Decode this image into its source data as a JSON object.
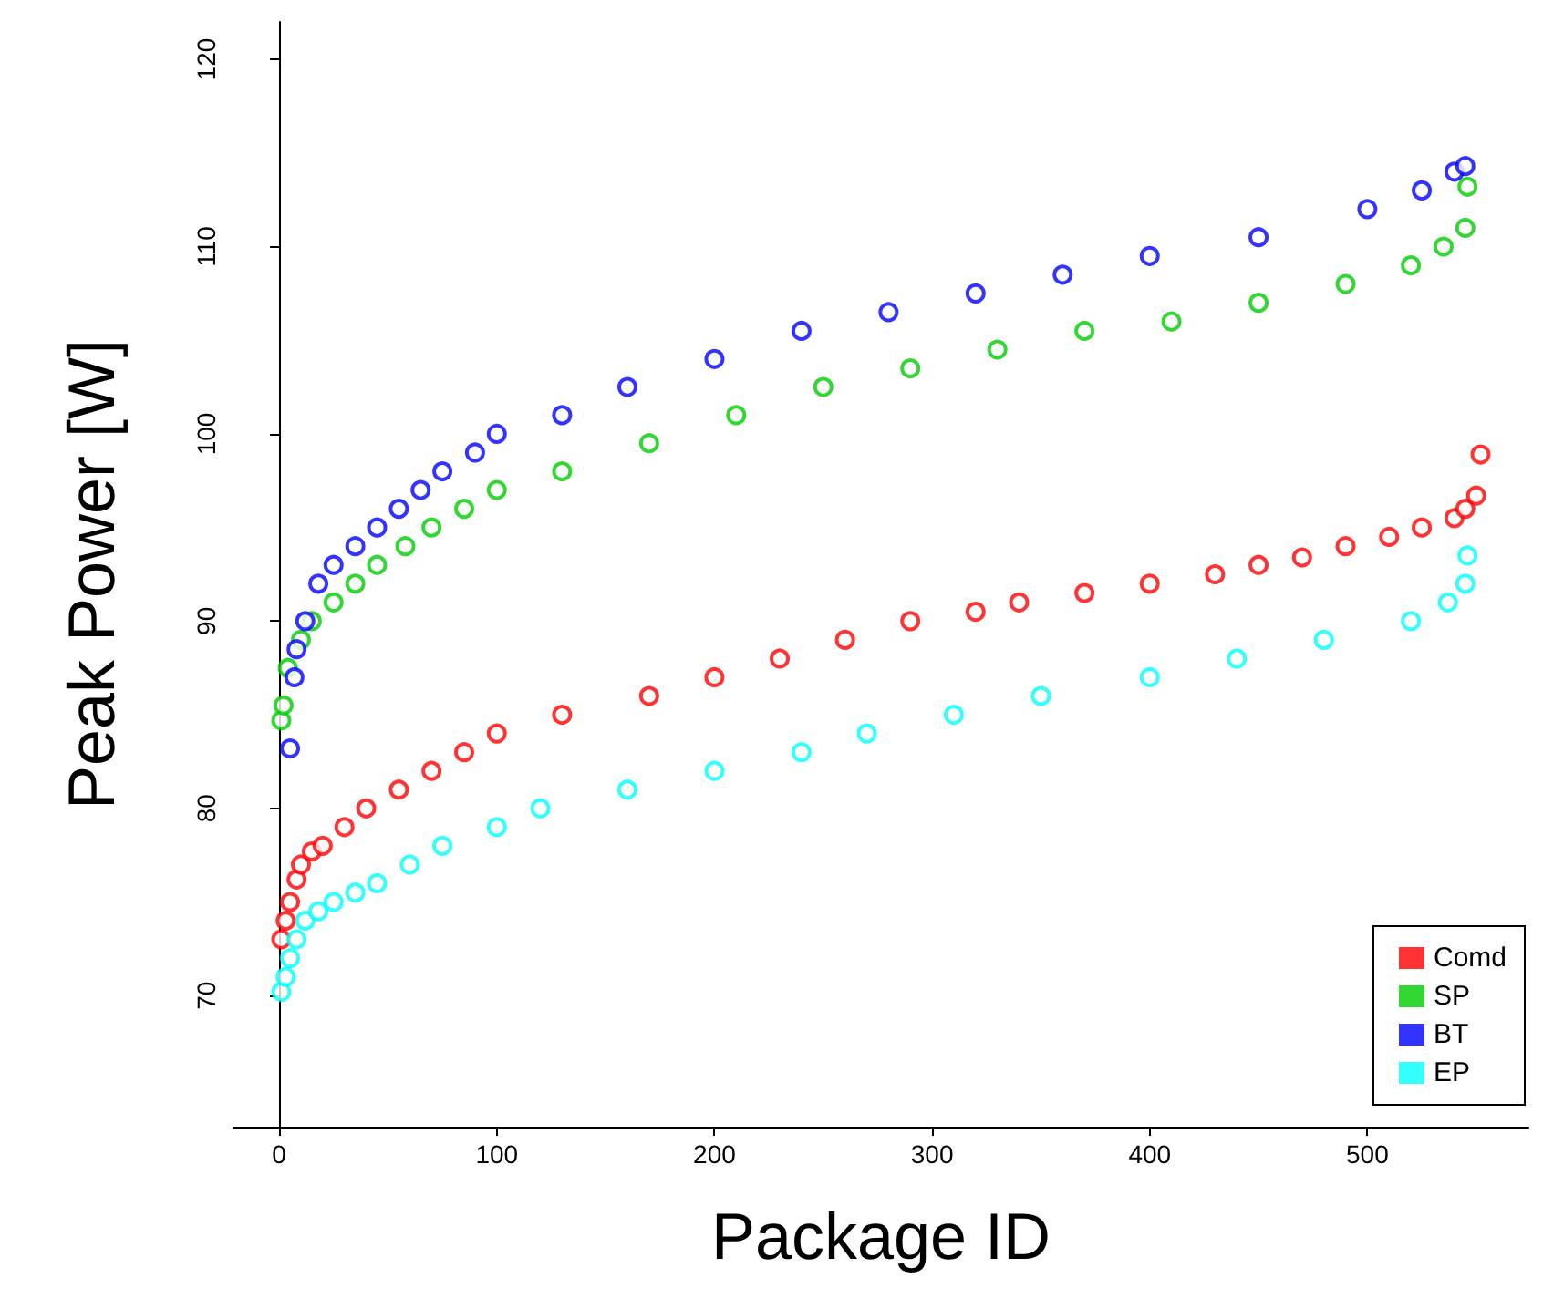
{
  "chart_data": {
    "type": "scatter",
    "xlabel": "Package ID",
    "ylabel": "Peak Power [W]",
    "xlim": [
      -21,
      574
    ],
    "ylim": [
      63,
      122
    ],
    "xticks": [
      0,
      100,
      200,
      300,
      400,
      500
    ],
    "yticks": [
      70,
      80,
      90,
      100,
      110,
      120
    ],
    "grid": false,
    "legend": "bottom right",
    "marker": "circle",
    "series": [
      {
        "name": "Comd",
        "color": "#ff0000",
        "x": [
          1,
          3,
          5,
          8,
          10,
          15,
          20,
          30,
          40,
          55,
          70,
          85,
          100,
          130,
          170,
          200,
          230,
          260,
          290,
          320,
          340,
          370,
          400,
          430,
          450,
          470,
          490,
          510,
          525,
          540,
          545,
          550,
          552
        ],
        "values": [
          73,
          74,
          75,
          76.2,
          77,
          77.7,
          78,
          79,
          80,
          81,
          82,
          83,
          84,
          85,
          86,
          87,
          88,
          89,
          90,
          90.5,
          91,
          91.5,
          92,
          92.5,
          93,
          93.4,
          94,
          94.5,
          95,
          95.5,
          96,
          96.7,
          98.9
        ]
      },
      {
        "name": "SP",
        "color": "#00cd00",
        "x": [
          1,
          2,
          4,
          10,
          15,
          25,
          35,
          45,
          58,
          70,
          85,
          100,
          130,
          170,
          210,
          250,
          290,
          330,
          370,
          410,
          450,
          490,
          520,
          535,
          545,
          546
        ],
        "values": [
          84.7,
          85.5,
          87.5,
          89,
          90,
          91,
          92,
          93,
          94,
          95,
          96,
          97,
          98,
          99.5,
          101,
          102.5,
          103.5,
          104.5,
          105.5,
          106,
          107,
          108,
          109,
          110,
          111,
          113.2
        ]
      },
      {
        "name": "BT",
        "color": "#0000ff",
        "x": [
          5,
          7,
          8,
          12,
          18,
          25,
          35,
          45,
          55,
          65,
          75,
          90,
          100,
          130,
          160,
          200,
          240,
          280,
          320,
          360,
          400,
          450,
          500,
          525,
          540,
          545
        ],
        "values": [
          83.2,
          87,
          88.5,
          90,
          92,
          93,
          94,
          95,
          96,
          97,
          98,
          99,
          100,
          101,
          102.5,
          104,
          105.5,
          106.5,
          107.5,
          108.5,
          109.5,
          110.5,
          112,
          113,
          114,
          114.3
        ]
      },
      {
        "name": "EP",
        "color": "#00ffff",
        "x": [
          1,
          3,
          5,
          8,
          12,
          18,
          25,
          35,
          45,
          60,
          75,
          100,
          120,
          160,
          200,
          240,
          270,
          310,
          350,
          400,
          440,
          480,
          520,
          537,
          545,
          546
        ],
        "values": [
          70.2,
          71,
          72,
          73,
          74,
          74.5,
          75,
          75.5,
          76,
          77,
          78,
          79,
          80,
          81,
          82,
          83,
          84,
          85,
          86,
          87,
          88,
          89,
          90,
          91,
          92,
          93.5
        ]
      }
    ]
  }
}
